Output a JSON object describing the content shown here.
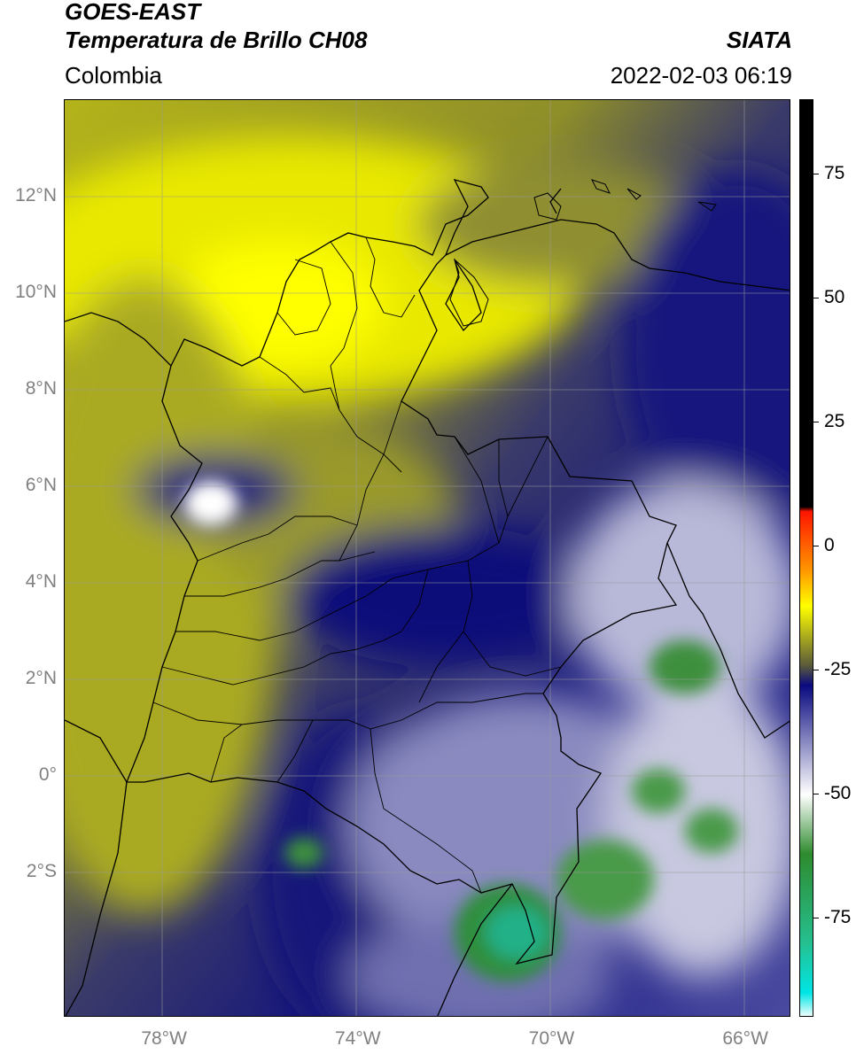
{
  "header": {
    "satellite": "GOES-EAST",
    "product": "Temperatura de Brillo CH08",
    "source": "SIATA",
    "region": "Colombia",
    "timestamp": "2022-02-03 06:19"
  },
  "map": {
    "lat_labels": [
      "12°N",
      "10°N",
      "8°N",
      "6°N",
      "4°N",
      "2°N",
      "0°",
      "2°S"
    ],
    "lon_labels": [
      "78°W",
      "74°W",
      "70°W",
      "66°W"
    ],
    "extent": {
      "lon_min": -80,
      "lon_max": -65,
      "lat_min": -5,
      "lat_max": 14
    },
    "gridlines": true
  },
  "colorbar": {
    "labels": [
      "75",
      "50",
      "25",
      "0",
      "-25",
      "-50",
      "-75"
    ],
    "range": [
      -95,
      90
    ],
    "palette": [
      {
        "value": 90,
        "color": "#000000"
      },
      {
        "value": 8,
        "color": "#000000"
      },
      {
        "value": 7,
        "color": "#ff1500"
      },
      {
        "value": -5,
        "color": "#ff9900"
      },
      {
        "value": -12,
        "color": "#ffff00"
      },
      {
        "value": -24,
        "color": "#5a5a3a"
      },
      {
        "value": -28,
        "color": "#0a0a80"
      },
      {
        "value": -50,
        "color": "#ffffff"
      },
      {
        "value": -62,
        "color": "#2e8b2e"
      },
      {
        "value": -80,
        "color": "#25c090"
      },
      {
        "value": -90,
        "color": "#00e5e5"
      },
      {
        "value": -95,
        "color": "#ffffff"
      }
    ]
  }
}
